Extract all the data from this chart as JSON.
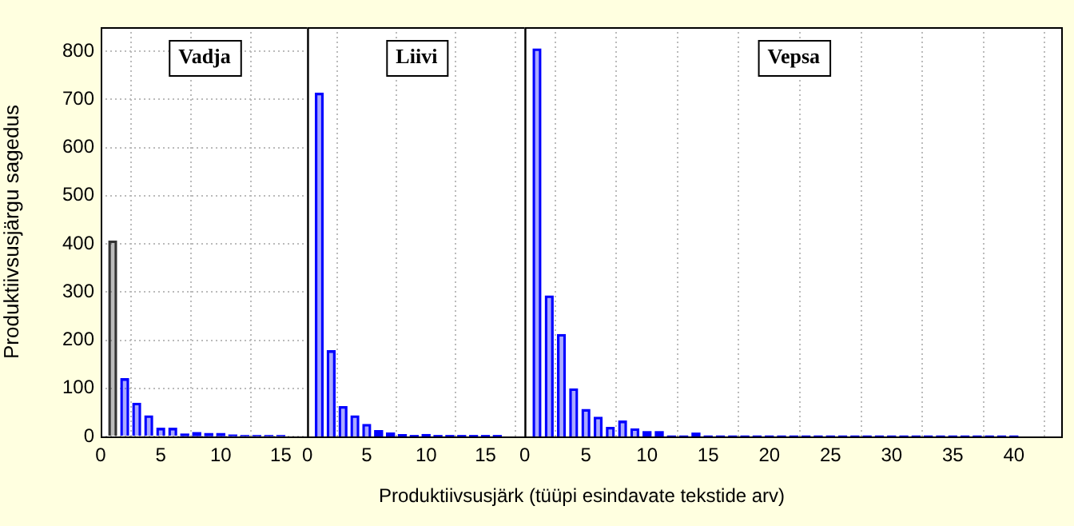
{
  "chart_data": [
    {
      "type": "bar",
      "title": "Vadja",
      "ylabel": "Produktiivsusjärgu sagedus",
      "x": [
        1,
        2,
        3,
        4,
        5,
        6,
        7,
        8,
        9,
        10,
        11,
        12,
        13,
        14,
        15
      ],
      "values": [
        406,
        120,
        69,
        43,
        17,
        17,
        5,
        8,
        6,
        6,
        3,
        2,
        2,
        2,
        2
      ],
      "colors": [
        "#333333",
        "#0000ff",
        "#0000ff",
        "#0000ff",
        "#0000ff",
        "#0000ff",
        "#0000ff",
        "#0000ff",
        "#0000ff",
        "#0000ff",
        "#0000ff",
        "#0000ff",
        "#0000ff",
        "#0000ff",
        "#0000ff"
      ],
      "xlim": [
        0,
        17.3
      ],
      "xticks": [
        0,
        5,
        10,
        15
      ],
      "ylim": [
        0,
        850
      ],
      "yticks": [
        0,
        100,
        200,
        300,
        400,
        500,
        600,
        700,
        800
      ],
      "grid": true
    },
    {
      "type": "bar",
      "title": "Liivi",
      "xlabel": "Produktiivsusjärk (tüüpi esindavate tekstide arv)",
      "x": [
        1,
        2,
        3,
        4,
        5,
        6,
        7,
        8,
        9,
        10,
        11,
        12,
        13,
        14,
        15,
        16
      ],
      "values": [
        713,
        178,
        62,
        43,
        25,
        12,
        7,
        4,
        2,
        4,
        2,
        2,
        2,
        2,
        2,
        2
      ],
      "color": "#0000ff",
      "xlim": [
        0,
        18.4
      ],
      "xticks": [
        0,
        5,
        10,
        15
      ],
      "ylim": [
        0,
        850
      ],
      "tick_labels": "x",
      "grid": true
    },
    {
      "type": "bar",
      "title": "Vepsa",
      "x": [
        1,
        2,
        3,
        4,
        5,
        6,
        7,
        8,
        9,
        10,
        11,
        12,
        13,
        14,
        15,
        16,
        17,
        18,
        19,
        20,
        21,
        22,
        23,
        24,
        25,
        26,
        27,
        28,
        29,
        30,
        31,
        32,
        33,
        34,
        35,
        36,
        37,
        38,
        39,
        40
      ],
      "values": [
        805,
        292,
        212,
        99,
        56,
        40,
        19,
        32,
        16,
        10,
        10,
        1,
        1,
        7,
        1,
        1,
        1,
        1,
        1,
        1,
        1,
        1,
        1,
        1,
        1,
        1,
        1,
        1,
        1,
        1,
        1,
        1,
        1,
        1,
        1,
        1,
        1,
        1,
        1,
        1
      ],
      "color": "#0000ff",
      "xlim": [
        0,
        44
      ],
      "xticks": [
        0,
        5,
        10,
        15,
        20,
        25,
        30,
        35,
        40
      ],
      "ylim": [
        0,
        850
      ],
      "tick_labels": "x",
      "grid": true
    }
  ]
}
